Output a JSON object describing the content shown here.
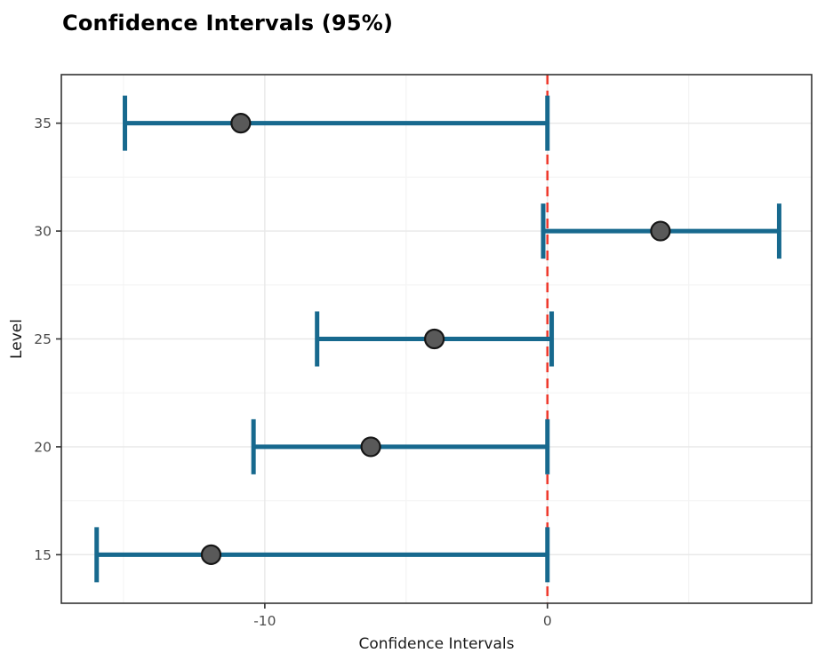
{
  "title": "Confidence Intervals (95%)",
  "chart_data": {
    "type": "errorbar",
    "title": "Confidence Intervals (95%)",
    "xlabel": "Confidence Intervals",
    "ylabel": "Level",
    "orientation": "horizontal",
    "x_ticks": [
      -10,
      0
    ],
    "x_tick_labels": [
      "-10",
      "0"
    ],
    "y_ticks": [
      15,
      20,
      25,
      30,
      35
    ],
    "y_tick_labels": [
      "15",
      "20",
      "25",
      "30",
      "35"
    ],
    "xlim": [
      -17.2,
      9.35
    ],
    "ylim": [
      12.75,
      37.25
    ],
    "x_minor_gridlines": [
      -15,
      -5,
      5
    ],
    "y_minor_gridlines": [
      17.5,
      22.5,
      27.5,
      32.5
    ],
    "grid": true,
    "legend": "none",
    "reference_line": {
      "x": 0,
      "style": "dashed",
      "color": "#ef3a2d"
    },
    "series": [
      {
        "level": 15,
        "mean": -11.9,
        "lower": -15.95,
        "upper": 0
      },
      {
        "level": 20,
        "mean": -6.25,
        "lower": -10.4,
        "upper": 0
      },
      {
        "level": 25,
        "mean": -4.0,
        "lower": -8.15,
        "upper": 0.15
      },
      {
        "level": 30,
        "mean": 4.0,
        "lower": -0.15,
        "upper": 8.2
      },
      {
        "level": 35,
        "mean": -10.85,
        "lower": -14.95,
        "upper": 0
      }
    ],
    "colors": {
      "errorbar": "#17698e",
      "point_fill": "#595959",
      "point_stroke": "#161616",
      "grid_major": "#e8e8e8",
      "grid_minor": "#f4f4f4",
      "panel_border": "#333333",
      "panel_background": "#ffffff",
      "axis_tick_text": "#4d4d4d",
      "axis_title_text": "#1a1a1a",
      "tick_mark": "#333333"
    }
  }
}
